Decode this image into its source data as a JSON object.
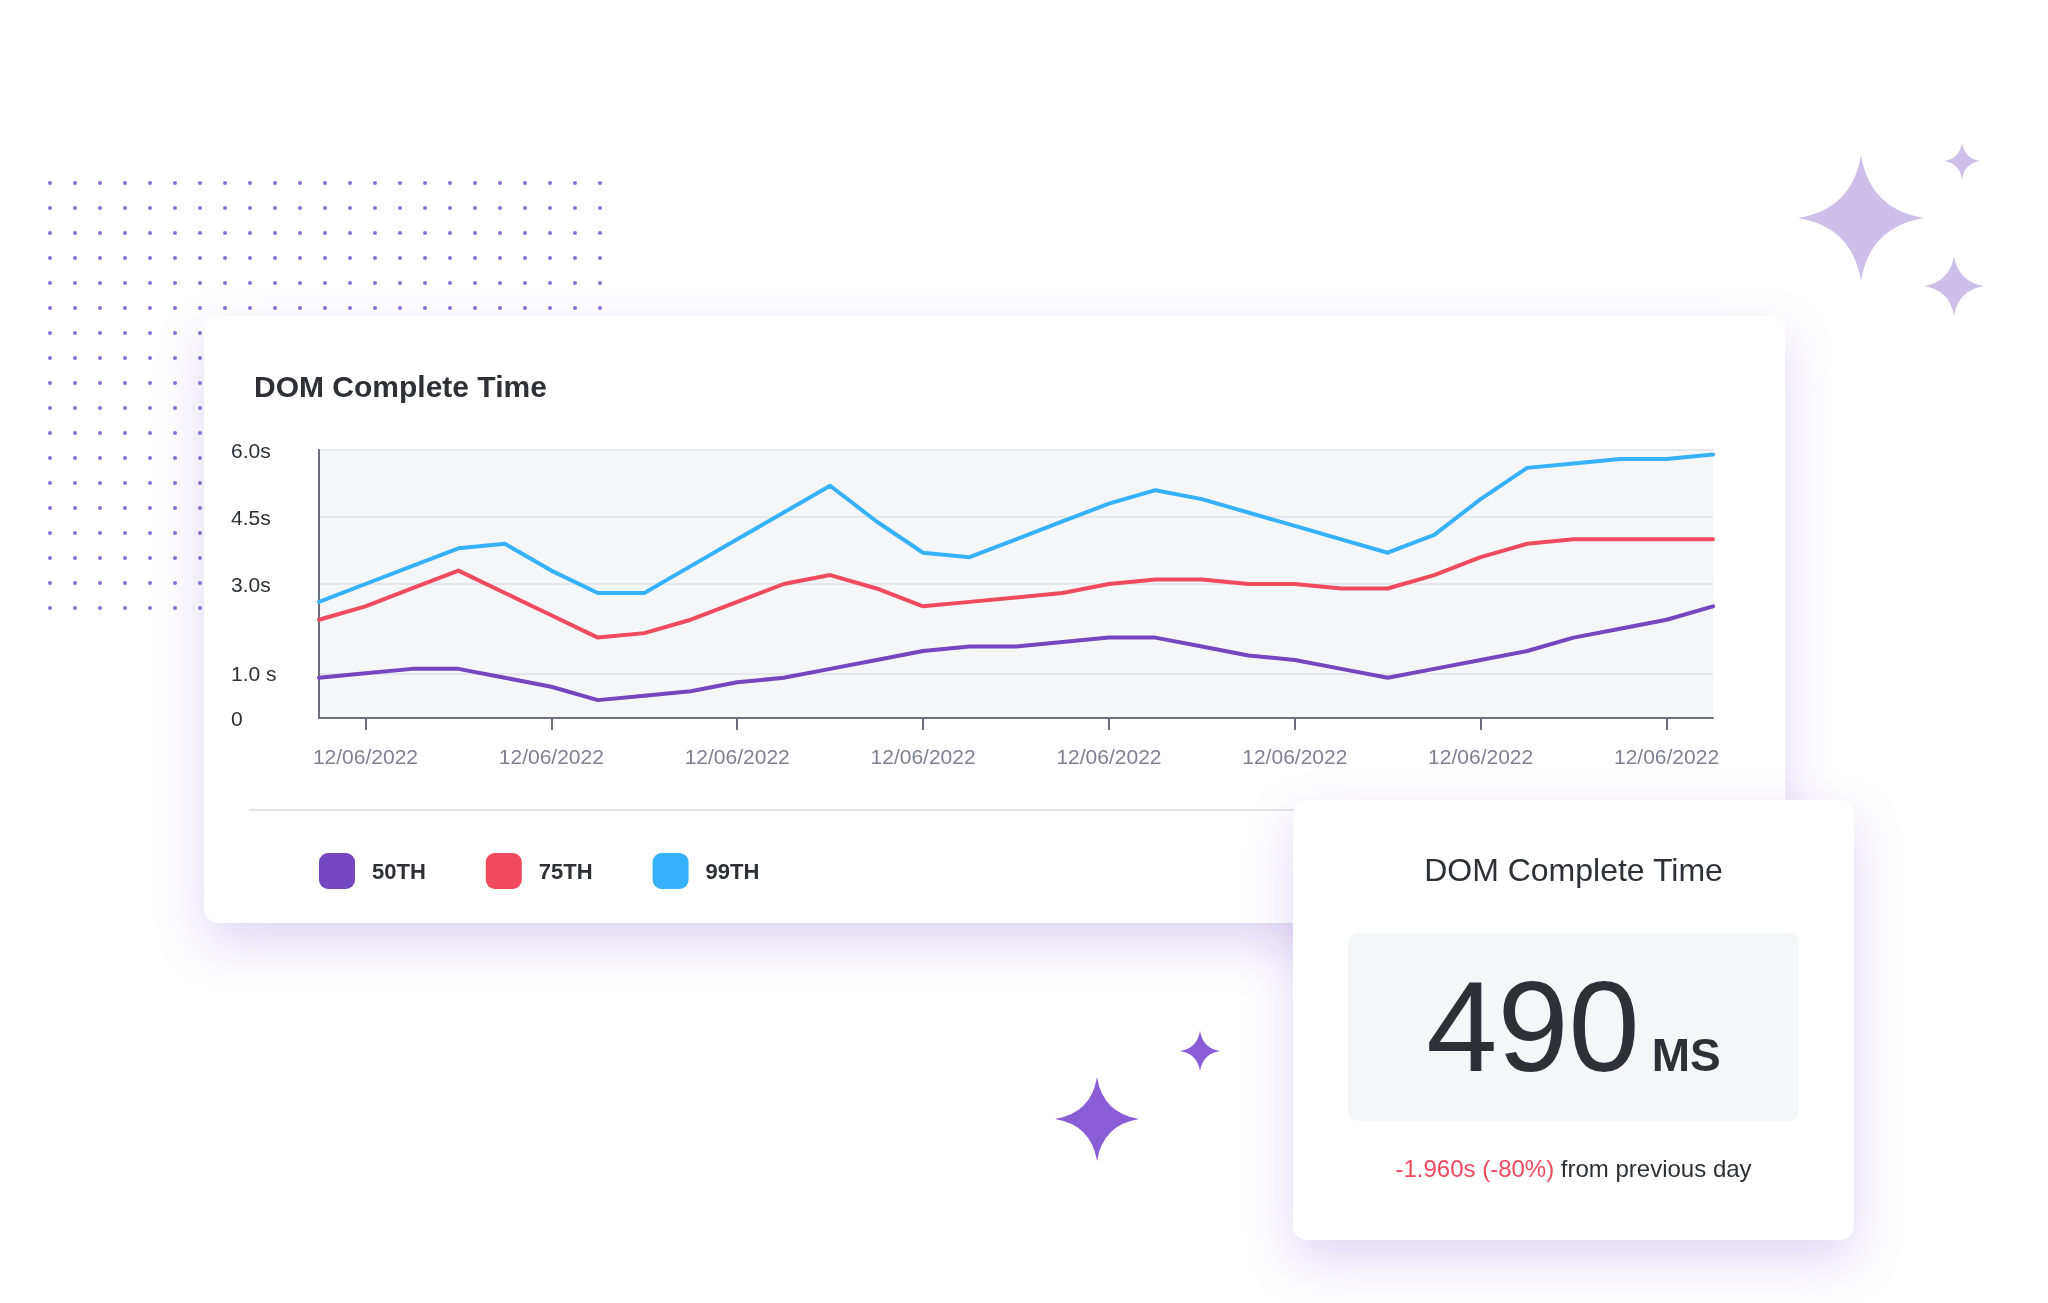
{
  "chart_data": [
    {
      "type": "line",
      "title": "DOM Complete Time",
      "categories": [
        null,
        "12/06/2022",
        null,
        null,
        null,
        "12/06/2022",
        null,
        null,
        null,
        "12/06/2022",
        null,
        null,
        null,
        "12/06/2022",
        null,
        null,
        null,
        "12/06/2022",
        null,
        null,
        null,
        "12/06/2022",
        null,
        null,
        null,
        "12/06/2022",
        null,
        null,
        null,
        "12/06/2022",
        null
      ],
      "series": [
        {
          "name": "50TH",
          "color": "#7446c0",
          "values": [
            0.9,
            1.0,
            1.1,
            1.1,
            0.9,
            0.7,
            0.4,
            0.5,
            0.6,
            0.8,
            0.9,
            1.1,
            1.3,
            1.5,
            1.6,
            1.6,
            1.7,
            1.8,
            1.8,
            1.6,
            1.4,
            1.3,
            1.1,
            0.9,
            1.1,
            1.3,
            1.5,
            1.8,
            2.0,
            2.2,
            2.5
          ]
        },
        {
          "name": "75TH",
          "color": "#f04a5e",
          "values": [
            2.2,
            2.5,
            2.9,
            3.3,
            2.8,
            2.3,
            1.8,
            1.9,
            2.2,
            2.6,
            3.0,
            3.2,
            2.9,
            2.5,
            2.6,
            2.7,
            2.8,
            3.0,
            3.1,
            3.1,
            3.0,
            3.0,
            2.9,
            2.9,
            3.2,
            3.6,
            3.9,
            4.0,
            4.0,
            4.0,
            4.0
          ]
        },
        {
          "name": "99TH",
          "color": "#36b1fb",
          "values": [
            2.6,
            3.0,
            3.4,
            3.8,
            3.9,
            3.3,
            2.8,
            2.8,
            3.4,
            4.0,
            4.6,
            5.2,
            4.4,
            3.7,
            3.6,
            4.0,
            4.4,
            4.8,
            5.1,
            4.9,
            4.6,
            4.3,
            4.0,
            3.7,
            4.1,
            4.9,
            5.6,
            5.7,
            5.8,
            5.8,
            5.9
          ]
        }
      ],
      "ylim": [
        0,
        6
      ],
      "yticks": [
        0,
        {
          "value": 1,
          "label": "1.0 s"
        },
        {
          "value": 3,
          "label": "3.0s"
        },
        {
          "value": 4.5,
          "label": "4.5s"
        },
        {
          "value": 6,
          "label": "6.0s"
        }
      ],
      "grid": "y",
      "legend": "bottom left",
      "marker": "none",
      "line_style": "solid"
    },
    {
      "type": "other",
      "title": "DOM Complete Time",
      "annotations": [
        "490",
        "MS",
        "-1.960s (-80%)",
        "from previous day"
      ]
    }
  ]
}
